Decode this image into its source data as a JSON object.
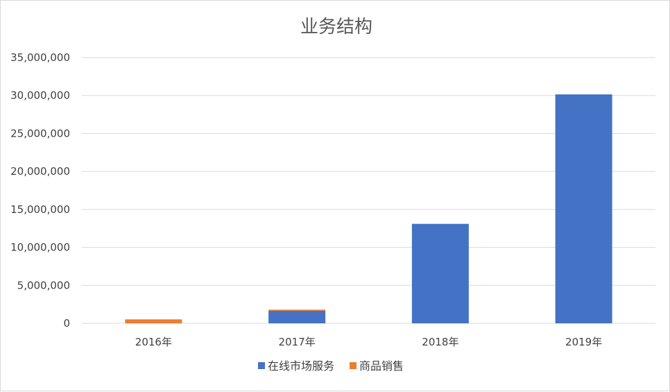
{
  "chart_data": {
    "type": "bar",
    "stacked": true,
    "title": "业务结构",
    "categories": [
      "2016年",
      "2017年",
      "2018年",
      "2019年"
    ],
    "series": [
      {
        "name": "在线市场服务",
        "color": "#4472C4",
        "values": [
          0,
          1650000,
          13100000,
          30150000
        ]
      },
      {
        "name": "商品销售",
        "color": "#ED7D31",
        "values": [
          520000,
          150000,
          0,
          0
        ]
      }
    ],
    "ylim": [
      0,
      35000000
    ],
    "yticks": [
      "0",
      "5,000,000",
      "10,000,000",
      "15,000,000",
      "20,000,000",
      "25,000,000",
      "30,000,000",
      "35,000,000"
    ],
    "grid": true,
    "legend": "bottom"
  }
}
